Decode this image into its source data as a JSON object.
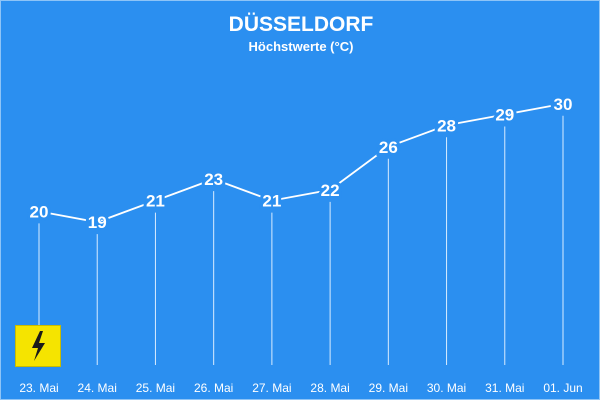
{
  "chart_data": {
    "type": "line",
    "title": "DÜSSELDORF",
    "subtitle": "Höchstwerte (°C)",
    "categories": [
      "23. Mai",
      "24. Mai",
      "25. Mai",
      "26. Mai",
      "27. Mai",
      "28. Mai",
      "29. Mai",
      "30. Mai",
      "31. Mai",
      "01. Jun"
    ],
    "series": [
      {
        "values": [
          20,
          19,
          21,
          23,
          21,
          22,
          26,
          28,
          29,
          30
        ]
      }
    ],
    "ylim": [
      10,
      31
    ],
    "grid": false,
    "colors": {
      "background": "#2b8ff0",
      "line": "#ffffff",
      "text": "#ffffff",
      "drop_lines": "#d9ecff"
    }
  },
  "logo": {
    "icon": "lightning-bolt-icon",
    "color": "#f5e400"
  }
}
